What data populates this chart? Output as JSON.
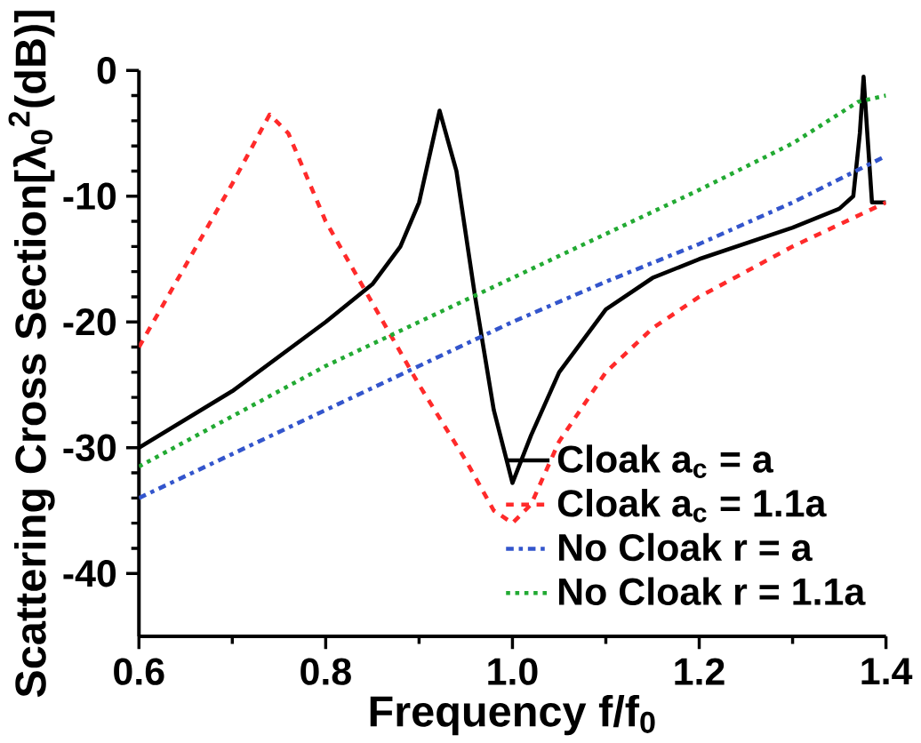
{
  "chart_data": {
    "type": "line",
    "xlabel": "Frequency f/f$_{0}$",
    "ylabel": "Scattering Cross Section[λ$_{0}$$^{2}$(dB)]",
    "xlim": [
      0.6,
      1.4
    ],
    "ylim": [
      -45,
      0
    ],
    "xticks": [
      {
        "value": 0.6,
        "label": "0.6"
      },
      {
        "value": 0.8,
        "label": "0.8"
      },
      {
        "value": 1.0,
        "label": "1.0"
      },
      {
        "value": 1.2,
        "label": "1.2"
      },
      {
        "value": 1.4,
        "label": "1.4"
      }
    ],
    "yticks": [
      -40,
      -30,
      -20,
      -10,
      0
    ],
    "grid": false,
    "legend": "bottom right",
    "marker": "none",
    "series": [
      {
        "name": "Cloak a$_{c}$ = a",
        "color": "#000000",
        "line_style": "solid",
        "x": [
          0.6,
          0.7,
          0.8,
          0.85,
          0.88,
          0.9,
          0.922,
          0.94,
          0.96,
          0.98,
          1.0,
          1.02,
          1.05,
          1.1,
          1.15,
          1.2,
          1.3,
          1.35,
          1.365,
          1.372,
          1.376,
          1.38,
          1.385,
          1.4
        ],
        "values": [
          -30,
          -25.5,
          -20,
          -17,
          -14,
          -10.5,
          -3.2,
          -8,
          -18,
          -27,
          -32.8,
          -29,
          -24,
          -19,
          -16.5,
          -15,
          -12.5,
          -11,
          -10,
          -5,
          -0.5,
          -5,
          -10.5,
          -10.5
        ]
      },
      {
        "name": "Cloak a$_{c}$ = 1.1a",
        "color": "#ff2a2a",
        "line_style": "dashed",
        "x": [
          0.6,
          0.65,
          0.7,
          0.74,
          0.76,
          0.8,
          0.85,
          0.9,
          0.95,
          0.98,
          1.0,
          1.02,
          1.05,
          1.1,
          1.15,
          1.2,
          1.3,
          1.4
        ],
        "values": [
          -22,
          -15.5,
          -9,
          -3.5,
          -5,
          -12,
          -18.5,
          -25,
          -31,
          -35,
          -36,
          -34.5,
          -29.5,
          -24,
          -20.5,
          -18,
          -14,
          -10.5
        ]
      },
      {
        "name": "No Cloak r = a",
        "color": "#3355cc",
        "line_style": "dashdot",
        "x": [
          0.6,
          0.7,
          0.8,
          0.9,
          1.0,
          1.1,
          1.2,
          1.3,
          1.4
        ],
        "values": [
          -34,
          -30.5,
          -27,
          -23.5,
          -20,
          -16.8,
          -13.8,
          -10.5,
          -6.8
        ]
      },
      {
        "name": "No Cloak r = 1.1a",
        "color": "#22aa33",
        "line_style": "dotted",
        "x": [
          0.6,
          0.7,
          0.8,
          0.9,
          1.0,
          1.1,
          1.2,
          1.3,
          1.37,
          1.4
        ],
        "values": [
          -31.5,
          -27.5,
          -23.5,
          -20,
          -16.5,
          -13,
          -9.5,
          -5.8,
          -2.5,
          -2
        ]
      }
    ]
  }
}
